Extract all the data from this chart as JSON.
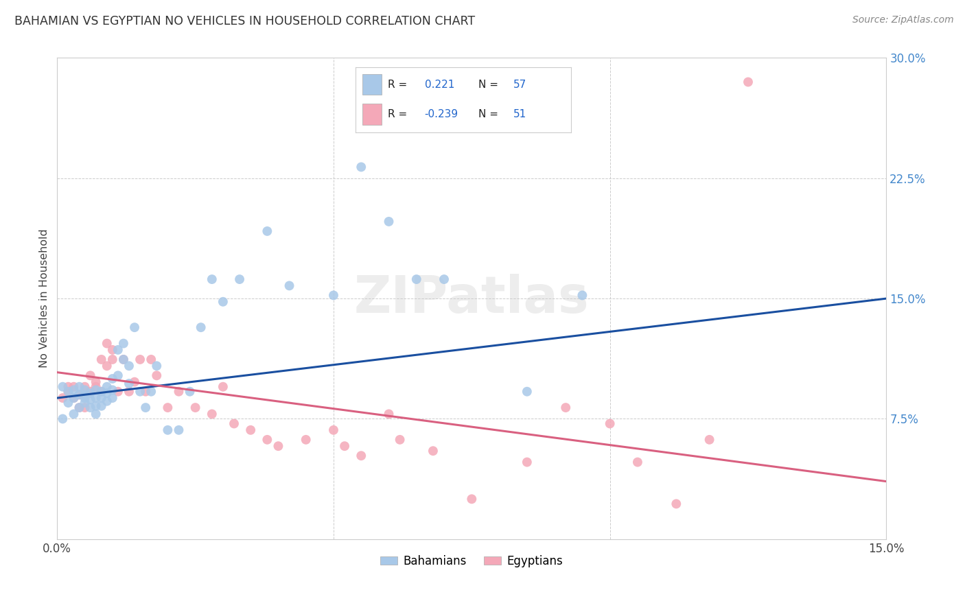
{
  "title": "BAHAMIAN VS EGYPTIAN NO VEHICLES IN HOUSEHOLD CORRELATION CHART",
  "source": "Source: ZipAtlas.com",
  "ylabel": "No Vehicles in Household",
  "x_min": 0.0,
  "x_max": 0.15,
  "y_min": 0.0,
  "y_max": 0.3,
  "grid_color": "#cccccc",
  "background_color": "#ffffff",
  "bahamian_color": "#a8c8e8",
  "egyptian_color": "#f4a8b8",
  "blue_line_color": "#1a4fa0",
  "pink_line_color": "#d96080",
  "legend_R_blue": "0.221",
  "legend_N_blue": "57",
  "legend_R_pink": "-0.239",
  "legend_N_pink": "51",
  "watermark": "ZIPatlas",
  "blue_line_x0": 0.0,
  "blue_line_y0": 0.088,
  "blue_line_x1": 0.15,
  "blue_line_y1": 0.15,
  "pink_line_x0": 0.0,
  "pink_line_y0": 0.104,
  "pink_line_x1": 0.15,
  "pink_line_y1": 0.036,
  "bahamian_x": [
    0.001,
    0.001,
    0.002,
    0.002,
    0.003,
    0.003,
    0.003,
    0.004,
    0.004,
    0.004,
    0.005,
    0.005,
    0.005,
    0.005,
    0.006,
    0.006,
    0.006,
    0.007,
    0.007,
    0.007,
    0.007,
    0.008,
    0.008,
    0.008,
    0.009,
    0.009,
    0.009,
    0.01,
    0.01,
    0.01,
    0.011,
    0.011,
    0.012,
    0.012,
    0.013,
    0.013,
    0.014,
    0.015,
    0.016,
    0.017,
    0.018,
    0.02,
    0.022,
    0.024,
    0.026,
    0.028,
    0.03,
    0.033,
    0.038,
    0.042,
    0.05,
    0.055,
    0.06,
    0.065,
    0.07,
    0.085,
    0.095
  ],
  "bahamian_y": [
    0.095,
    0.075,
    0.085,
    0.092,
    0.088,
    0.093,
    0.078,
    0.082,
    0.09,
    0.095,
    0.085,
    0.09,
    0.088,
    0.093,
    0.082,
    0.087,
    0.091,
    0.078,
    0.083,
    0.088,
    0.093,
    0.083,
    0.088,
    0.092,
    0.086,
    0.091,
    0.095,
    0.088,
    0.093,
    0.1,
    0.102,
    0.118,
    0.112,
    0.122,
    0.108,
    0.097,
    0.132,
    0.092,
    0.082,
    0.092,
    0.108,
    0.068,
    0.068,
    0.092,
    0.132,
    0.162,
    0.148,
    0.162,
    0.192,
    0.158,
    0.152,
    0.232,
    0.198,
    0.162,
    0.162,
    0.092,
    0.152
  ],
  "egyptian_x": [
    0.001,
    0.002,
    0.002,
    0.003,
    0.003,
    0.004,
    0.004,
    0.005,
    0.005,
    0.006,
    0.006,
    0.007,
    0.007,
    0.008,
    0.008,
    0.009,
    0.009,
    0.01,
    0.01,
    0.011,
    0.012,
    0.013,
    0.014,
    0.015,
    0.016,
    0.017,
    0.018,
    0.02,
    0.022,
    0.025,
    0.028,
    0.03,
    0.032,
    0.035,
    0.038,
    0.04,
    0.045,
    0.05,
    0.052,
    0.055,
    0.06,
    0.062,
    0.068,
    0.075,
    0.085,
    0.092,
    0.1,
    0.105,
    0.112,
    0.118,
    0.125
  ],
  "egyptian_y": [
    0.088,
    0.092,
    0.095,
    0.088,
    0.095,
    0.082,
    0.09,
    0.082,
    0.095,
    0.092,
    0.102,
    0.095,
    0.098,
    0.092,
    0.112,
    0.122,
    0.108,
    0.118,
    0.112,
    0.092,
    0.112,
    0.092,
    0.098,
    0.112,
    0.092,
    0.112,
    0.102,
    0.082,
    0.092,
    0.082,
    0.078,
    0.095,
    0.072,
    0.068,
    0.062,
    0.058,
    0.062,
    0.068,
    0.058,
    0.052,
    0.078,
    0.062,
    0.055,
    0.025,
    0.048,
    0.082,
    0.072,
    0.048,
    0.022,
    0.062,
    0.285
  ]
}
